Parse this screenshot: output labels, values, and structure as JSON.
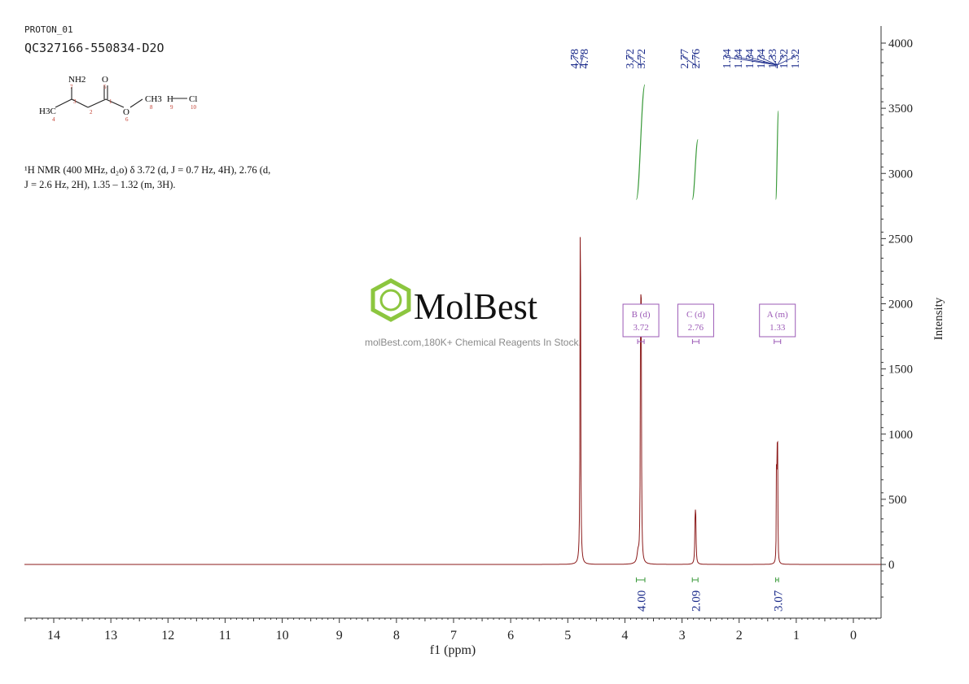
{
  "header": {
    "experiment": "PROTON_01",
    "sample_id": "QC327166-550834-D2O"
  },
  "structure": {
    "labels": [
      "NH2",
      "O",
      "H3C",
      "O",
      "CH3",
      "H",
      "Cl"
    ],
    "atom_numbers": [
      "7",
      "5",
      "3",
      "2",
      "1",
      "4",
      "6",
      "8",
      "9",
      "10"
    ]
  },
  "nmr_description": {
    "line1": "¹H NMR (400 MHz, d₂o) δ 3.72 (d, J = 0.7 Hz, 4H), 2.76 (d,",
    "line2": "J = 2.6 Hz, 2H), 1.35 – 1.32 (m, 3H)."
  },
  "watermark": {
    "brand": "MolBest",
    "tagline": "molBest.com,180K+ Chemical Reagents In Stock.",
    "color": "#8cc63f"
  },
  "colors": {
    "spectrum": "#8b1a1a",
    "integral": "#3a9a3a",
    "peak_label": "#1a2a8a",
    "multiplet_box": "#9b59b6"
  },
  "chart_data": {
    "type": "line",
    "title": "",
    "xlabel": "f1 (ppm)",
    "ylabel": "Intensity",
    "xlim": [
      14.5,
      -0.5
    ],
    "ylim": [
      -400,
      4100
    ],
    "x_ticks": [
      14,
      13,
      12,
      11,
      10,
      9,
      8,
      7,
      6,
      5,
      4,
      3,
      2,
      1,
      0
    ],
    "x_tick_labels": [
      "14",
      "13",
      "12",
      "11",
      "10",
      "9",
      "8",
      "7",
      "6",
      "5",
      "4",
      "3",
      "2",
      "1",
      "0"
    ],
    "y_ticks": [
      0,
      500,
      1000,
      1500,
      2000,
      2500,
      3000,
      3500,
      4000
    ],
    "y_tick_labels": [
      "0",
      "500",
      "1000",
      "1500",
      "2000",
      "2500",
      "3000",
      "3500",
      "4000"
    ],
    "peaks": [
      {
        "ppm": 4.78,
        "height": 3180,
        "width": 0.006
      },
      {
        "ppm": 3.725,
        "height": 1750,
        "width": 0.006
      },
      {
        "ppm": 3.715,
        "height": 1700,
        "width": 0.006
      },
      {
        "ppm": 3.77,
        "height": 80,
        "width": 0.02
      },
      {
        "ppm": 2.77,
        "height": 330,
        "width": 0.007
      },
      {
        "ppm": 2.76,
        "height": 300,
        "width": 0.007
      },
      {
        "ppm": 1.345,
        "height": 870,
        "width": 0.004
      },
      {
        "ppm": 1.335,
        "height": 860,
        "width": 0.004
      },
      {
        "ppm": 1.325,
        "height": 800,
        "width": 0.004
      }
    ],
    "peak_labels": {
      "groups": [
        {
          "values": [
            "4.78",
            "4.78"
          ],
          "ppm": 4.78
        },
        {
          "values": [
            "3.72",
            "3.72"
          ],
          "ppm": 3.72
        },
        {
          "values": [
            "2.77",
            "2.76"
          ],
          "ppm": 2.765
        },
        {
          "values": [
            "1.34",
            "1.34",
            "1.34",
            "1.34",
            "1.33",
            "1.32",
            "1.32"
          ],
          "ppm": 1.335
        }
      ]
    },
    "integrals": [
      {
        "from": 3.8,
        "to": 3.65,
        "value": "4.00",
        "curve_low": 2800,
        "curve_high": 3680
      },
      {
        "from": 2.82,
        "to": 2.72,
        "value": "2.09",
        "curve_low": 2800,
        "curve_high": 3260
      },
      {
        "from": 1.36,
        "to": 1.31,
        "value": "3.07",
        "curve_low": 2800,
        "curve_high": 3480
      }
    ],
    "multiplets": [
      {
        "label": "B (d)",
        "shift": "3.72",
        "ppm": 3.72
      },
      {
        "label": "C (d)",
        "shift": "2.76",
        "ppm": 2.76
      },
      {
        "label": "A (m)",
        "shift": "1.33",
        "ppm": 1.33
      }
    ]
  }
}
